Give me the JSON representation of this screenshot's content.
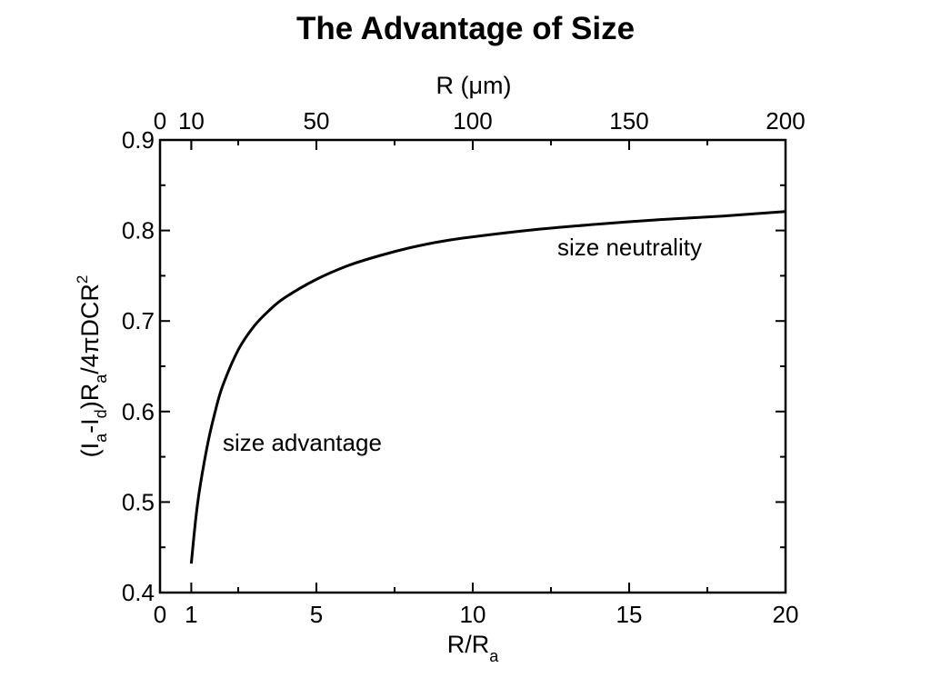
{
  "title": "The Advantage of Size",
  "chart_data": {
    "type": "line",
    "title": "The Advantage of Size",
    "xlabel": "R/R",
    "xlabel_sub": "a",
    "x2label": "R (μm)",
    "ylabel_parts": [
      "(I",
      "a",
      "-I",
      "d",
      ")R",
      "a",
      "/4πDCR",
      "2"
    ],
    "xlim": [
      0,
      20
    ],
    "ylim": [
      0.4,
      0.9
    ],
    "x2lim": [
      0,
      200
    ],
    "x_ticks": [
      0,
      1,
      5,
      10,
      15,
      20
    ],
    "x_tick_labels": [
      "0",
      "1",
      "5",
      "10",
      "15",
      "20"
    ],
    "x2_ticks": [
      0,
      10,
      50,
      100,
      150,
      200
    ],
    "x2_tick_labels": [
      "0",
      "10",
      "50",
      "100",
      "150",
      "200"
    ],
    "y_ticks": [
      0.4,
      0.5,
      0.6,
      0.7,
      0.8,
      0.9
    ],
    "y_tick_labels": [
      "0.4",
      "0.5",
      "0.6",
      "0.7",
      "0.8",
      "0.9"
    ],
    "grid": false,
    "series": [
      {
        "x": [
          1,
          1.2,
          1.5,
          1.75,
          2,
          2.5,
          3,
          3.5,
          4,
          5,
          6,
          7,
          8,
          9,
          10,
          12,
          14,
          16,
          18,
          20
        ],
        "y": [
          0.432,
          0.498,
          0.56,
          0.598,
          0.628,
          0.668,
          0.694,
          0.712,
          0.726,
          0.746,
          0.761,
          0.772,
          0.781,
          0.788,
          0.793,
          0.801,
          0.807,
          0.812,
          0.816,
          0.821
        ]
      }
    ],
    "annotations": [
      {
        "text": "size advantage",
        "x": 2.0,
        "y": 0.566
      },
      {
        "text": "size neutrality",
        "x": 12.8,
        "y": 0.78
      }
    ]
  }
}
